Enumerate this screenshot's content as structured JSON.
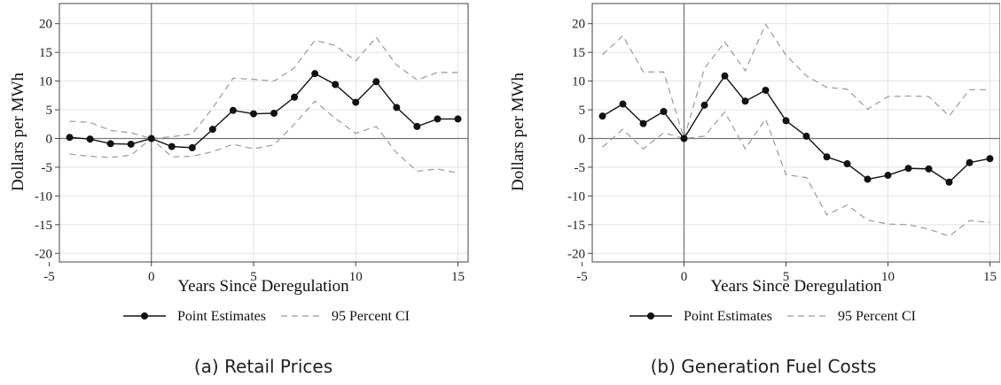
{
  "chart_data": [
    {
      "type": "line",
      "caption": "(a) Retail Prices",
      "xlabel": "Years Since Deregulation",
      "ylabel": "Dollars per MWh",
      "xlim": [
        -4.5,
        15.5
      ],
      "ylim": [
        -21.5,
        23.5
      ],
      "xticks": [
        -5,
        0,
        5,
        10,
        15
      ],
      "yticks": [
        20,
        15,
        10,
        5,
        0,
        -5,
        -10,
        -15,
        -20
      ],
      "xtick_labels": [
        "-5",
        "0",
        "5",
        "10",
        "15"
      ],
      "ytick_labels": [
        "20",
        "15",
        "10",
        "5",
        "0",
        "-5",
        "-10",
        "-15",
        "-20"
      ],
      "grid": true,
      "legend_position": "bottom",
      "legend": {
        "point": "Point Estimates",
        "ci": "95 Percent CI"
      },
      "x": [
        -4,
        -3,
        -2,
        -1,
        0,
        1,
        2,
        3,
        4,
        5,
        6,
        7,
        8,
        9,
        10,
        11,
        12,
        13,
        14,
        15
      ],
      "series": [
        {
          "name": "Point Estimates",
          "values": [
            0.2,
            -0.1,
            -0.9,
            -1.0,
            0.0,
            -1.4,
            -1.6,
            1.6,
            4.9,
            4.3,
            4.4,
            7.2,
            11.3,
            9.4,
            6.3,
            9.9,
            5.4,
            2.1,
            3.4,
            3.4
          ]
        },
        {
          "name": "95 Percent CI",
          "values": [
            3.0,
            2.8,
            1.4,
            1.0,
            0.0,
            0.3,
            0.8,
            5.3,
            10.5,
            10.3,
            10.0,
            12.3,
            17.1,
            16.2,
            13.5,
            17.6,
            12.8,
            10.2,
            11.5,
            11.5
          ]
        },
        {
          "name": "95 Percent CI",
          "values": [
            -2.7,
            -3.1,
            -3.3,
            -2.9,
            0.0,
            -3.2,
            -3.1,
            -2.3,
            -1.0,
            -1.8,
            -1.1,
            2.5,
            6.5,
            3.5,
            0.9,
            2.1,
            -2.5,
            -5.7,
            -5.3,
            -6.0
          ]
        }
      ]
    },
    {
      "type": "line",
      "caption": "(b) Generation Fuel Costs",
      "xlabel": "Years Since Deregulation",
      "ylabel": "Dollars per MWh",
      "xlim": [
        -4.5,
        15.5
      ],
      "ylim": [
        -21.5,
        23.5
      ],
      "xticks": [
        -5,
        0,
        5,
        10,
        15
      ],
      "yticks": [
        20,
        15,
        10,
        5,
        0,
        -5,
        -10,
        -15,
        -20
      ],
      "xtick_labels": [
        "-5",
        "0",
        "5",
        "10",
        "15"
      ],
      "ytick_labels": [
        "20",
        "15",
        "10",
        "5",
        "0",
        "-5",
        "-10",
        "-15",
        "-20"
      ],
      "grid": true,
      "legend_position": "bottom",
      "legend": {
        "point": "Point Estimates",
        "ci": "95 Percent CI"
      },
      "x": [
        -4,
        -3,
        -2,
        -1,
        0,
        1,
        2,
        3,
        4,
        5,
        6,
        7,
        8,
        9,
        10,
        11,
        12,
        13,
        14,
        15
      ],
      "series": [
        {
          "name": "Point Estimates",
          "values": [
            3.9,
            6.0,
            2.6,
            4.7,
            0.0,
            5.8,
            10.9,
            6.5,
            8.4,
            3.1,
            0.4,
            -3.2,
            -4.4,
            -7.1,
            -6.4,
            -5.2,
            -5.3,
            -7.6,
            -4.2,
            -3.5
          ]
        },
        {
          "name": "95 Percent CI",
          "values": [
            14.6,
            17.9,
            11.6,
            11.6,
            0.0,
            12.2,
            16.8,
            11.8,
            19.9,
            14.5,
            10.9,
            8.9,
            8.6,
            5.1,
            7.3,
            7.4,
            7.3,
            3.9,
            8.5,
            8.5
          ]
        },
        {
          "name": "95 Percent CI",
          "values": [
            -1.5,
            1.6,
            -1.8,
            1.0,
            0.0,
            0.4,
            4.6,
            -1.8,
            3.4,
            -6.3,
            -6.8,
            -13.3,
            -11.6,
            -14.2,
            -14.9,
            -15.0,
            -15.8,
            -17.0,
            -14.3,
            -14.6
          ]
        }
      ]
    }
  ]
}
